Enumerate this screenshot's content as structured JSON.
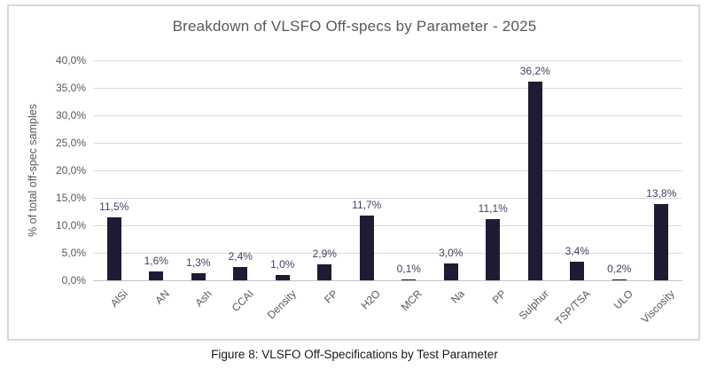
{
  "figure": {
    "caption": "Figure 8: VLSFO Off-Specifications by Test Parameter"
  },
  "chart_data": {
    "type": "bar",
    "title": "Breakdown of VLSFO Off-specs by Parameter - 2025",
    "categories": [
      "AlSi",
      "AN",
      "Ash",
      "CCAI",
      "Density",
      "FP",
      "H2O",
      "MCR",
      "Na",
      "PP",
      "Sulphur",
      "TSP/TSA",
      "ULO",
      "Viscosity"
    ],
    "values": [
      11.5,
      1.6,
      1.3,
      2.4,
      1.0,
      2.9,
      11.7,
      0.1,
      3.0,
      11.1,
      36.2,
      3.4,
      0.2,
      13.8
    ],
    "value_labels": [
      "11,5%",
      "1,6%",
      "1,3%",
      "2,4%",
      "1,0%",
      "2,9%",
      "11,7%",
      "0,1%",
      "3,0%",
      "11,1%",
      "36,2%",
      "3,4%",
      "0,2%",
      "13,8%"
    ],
    "xlabel": "",
    "ylabel": "% of total off-spec samples",
    "ylim": [
      0,
      40
    ],
    "ytick_step": 5,
    "ytick_labels": [
      "0,0%",
      "5,0%",
      "10,0%",
      "15,0%",
      "20,0%",
      "25,0%",
      "30,0%",
      "35,0%",
      "40,0%"
    ],
    "grid": true,
    "legend": false,
    "decimal_separator": ",",
    "bar_color": "#1E1C34",
    "value_label_color": "#404264",
    "axis_text_color": "#595959",
    "gridline_color": "#D9D9D9",
    "frame_border_color": "#D9D9D9"
  }
}
